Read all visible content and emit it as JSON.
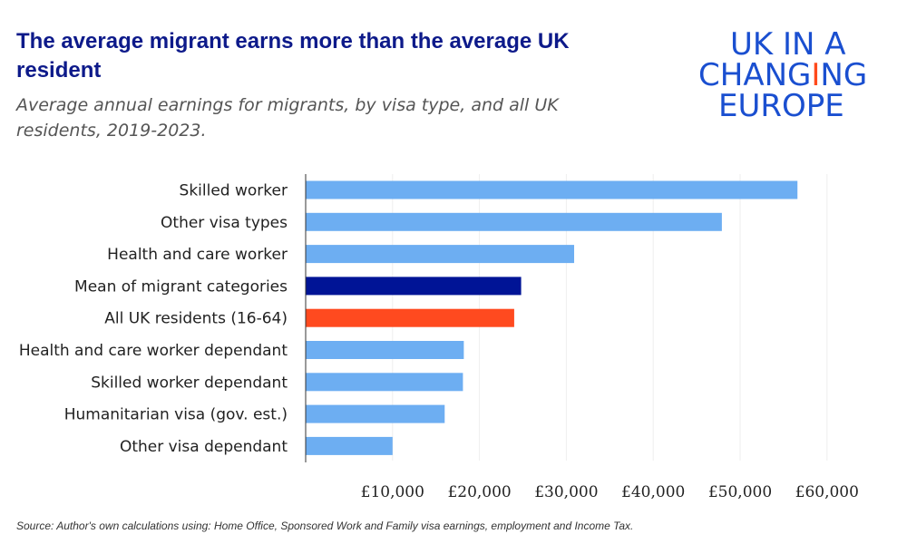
{
  "title": "The average migrant earns more than the average UK resident",
  "subtitle": "Average annual  earnings for migrants, by visa type, and all UK residents, 2019-2023.",
  "logo": {
    "lines": [
      "UK IN A",
      "CHANGING",
      "EUROPE"
    ],
    "colors": {
      "blue": "#1a4fd0",
      "accent": "#ff4a1c"
    }
  },
  "source": "Source: Author's own calculations using: Home Office, Sponsored Work and Family visa earnings, employment and Income Tax.",
  "chart_data": {
    "type": "bar",
    "orientation": "horizontal",
    "categories": [
      "Skilled worker",
      "Other visa types",
      "Health and care worker",
      "Mean of migrant categories",
      "All UK residents (16-64)",
      "Health and care worker dependant",
      "Skilled worker dependant",
      "Humanitarian visa (gov. est.)",
      "Other visa dependant"
    ],
    "values": [
      56600,
      47900,
      30900,
      24800,
      24000,
      18200,
      18100,
      16000,
      10000
    ],
    "colors": [
      "#6daef2",
      "#6daef2",
      "#6daef2",
      "#001496",
      "#ff4a1f",
      "#6daef2",
      "#6daef2",
      "#6daef2",
      "#6daef2"
    ],
    "xlim": [
      0,
      65000
    ],
    "xticks": [
      10000,
      20000,
      30000,
      40000,
      50000,
      60000
    ],
    "xtick_labels": [
      "£10,000",
      "£20,000",
      "£30,000",
      "£40,000",
      "£50,000",
      "£60,000"
    ],
    "grid": true
  }
}
